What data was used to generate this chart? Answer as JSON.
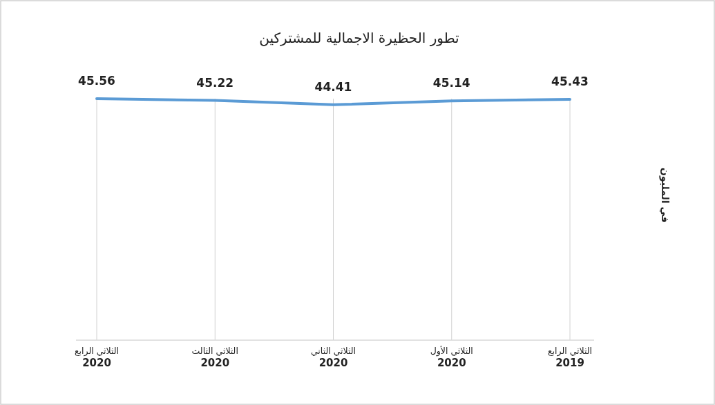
{
  "chart_data": {
    "type": "line",
    "title": "تطور الحظيرة الاجمالية للمشتركين",
    "ylabel": "في المليون",
    "categories": [
      "الثلاثي الرابع **2020**",
      "الثلاثي الثالث **2020**",
      "الثلاثي الثاني **2020**",
      "الثلاثي الأول **2020**",
      "الثلاثي الرابع **2019**"
    ],
    "series": [
      {
        "color": "#5b9bd5",
        "values": [
          45.56,
          45.22,
          44.41,
          45.14,
          45.43
        ]
      }
    ],
    "data_labels": true,
    "grid": "x"
  }
}
